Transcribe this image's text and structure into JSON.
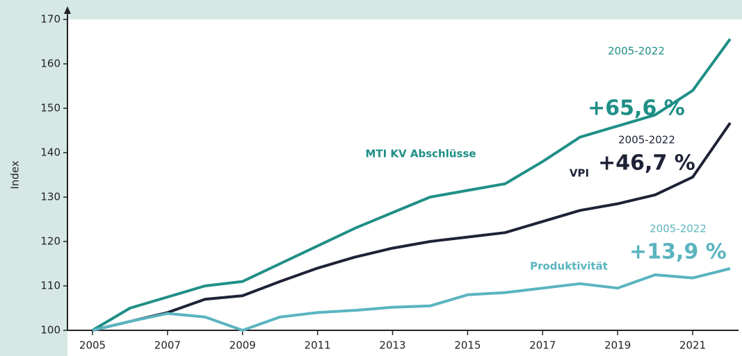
{
  "chart_data": {
    "type": "line",
    "y_label": "Index",
    "x": [
      2005,
      2006,
      2007,
      2008,
      2009,
      2010,
      2011,
      2012,
      2013,
      2014,
      2015,
      2016,
      2017,
      2018,
      2019,
      2020,
      2021,
      2022
    ],
    "series": [
      {
        "name": "MTI KV Abschlüsse",
        "color": "#1f8f86",
        "values": [
          100,
          105,
          107.5,
          110,
          111,
          115,
          119,
          123,
          126.5,
          130,
          131.5,
          133,
          138,
          143.5,
          146,
          148.5,
          154,
          165.6
        ]
      },
      {
        "name": "VPI",
        "color": "#1e2235",
        "values": [
          100,
          102,
          104,
          107,
          107.8,
          111,
          114,
          116.5,
          118.5,
          120,
          121,
          122,
          124.5,
          127,
          128.5,
          130.5,
          134.5,
          146.7
        ]
      },
      {
        "name": "Produktivität",
        "color": "#5ab4c0",
        "values": [
          100,
          102,
          103.8,
          103,
          100,
          103,
          104,
          104.5,
          105.2,
          105.5,
          108,
          108.5,
          109.5,
          110.5,
          109.5,
          112.5,
          111.8,
          113.9
        ]
      }
    ],
    "annotations": [
      {
        "period": "2005-2022",
        "change": "+65,6 %"
      },
      {
        "period": "2005-2022",
        "change": "+46,7 %"
      },
      {
        "period": "2005-2022",
        "change": "+13,9 %"
      }
    ],
    "xlim": [
      2005,
      2022
    ],
    "xticks": [
      2005,
      2007,
      2009,
      2011,
      2013,
      2015,
      2017,
      2019,
      2021
    ],
    "ylim": [
      100,
      170
    ],
    "yticks": [
      100,
      110,
      120,
      130,
      140,
      150,
      160,
      170
    ]
  }
}
